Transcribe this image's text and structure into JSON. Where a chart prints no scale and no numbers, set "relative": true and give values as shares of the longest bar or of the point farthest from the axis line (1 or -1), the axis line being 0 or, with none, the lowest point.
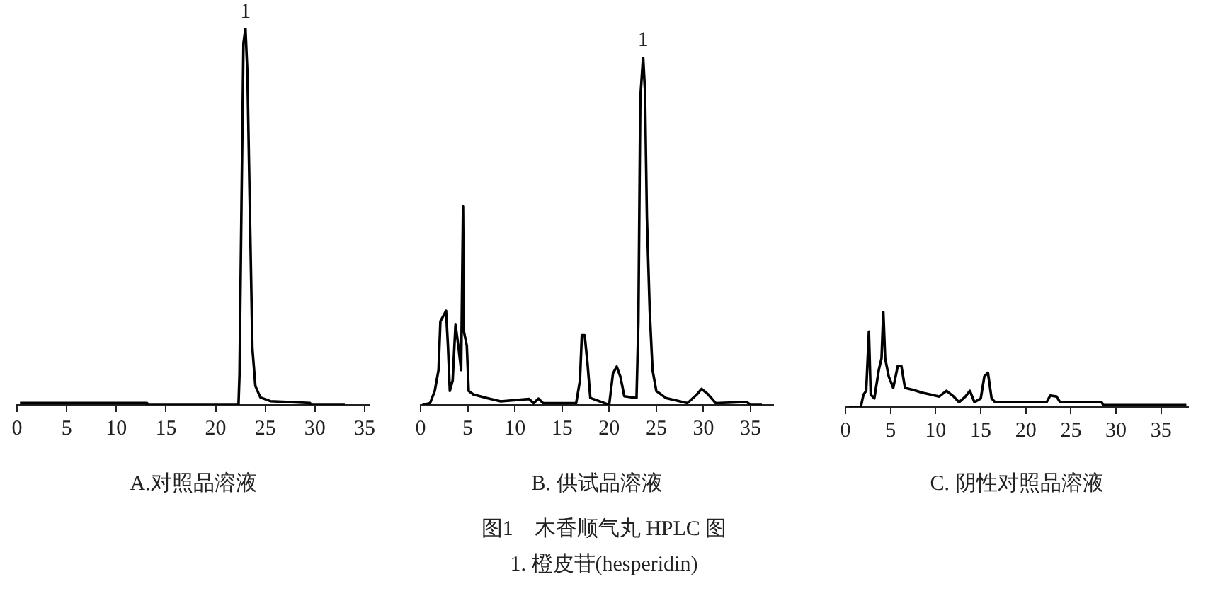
{
  "chart_data": [
    {
      "type": "line",
      "xlabel": "A.对照品溶液",
      "relative": true,
      "xlim": [
        0,
        35.5
      ],
      "xticks": [
        0,
        5,
        10,
        15,
        20,
        25,
        30,
        35
      ],
      "tick_labels": "x",
      "grid": false,
      "legend": false,
      "marker": "none",
      "annotations": [
        {
          "text": "1",
          "x": 23.0,
          "y": 1
        }
      ],
      "series": [
        {
          "color": "#000000",
          "x": [
            0.3,
            13,
            13.1,
            22.3,
            22.4,
            22.6,
            22.8,
            23.0,
            23.2,
            23.4,
            23.7,
            24.0,
            24.5,
            25.5,
            29.5,
            29.6,
            33
          ],
          "values": [
            0.005,
            0.005,
            0,
            0,
            0.08,
            0.53,
            0.96,
            1,
            0.88,
            0.58,
            0.15,
            0.05,
            0.02,
            0.01,
            0.005,
            0,
            0
          ]
        }
      ]
    },
    {
      "type": "line",
      "xlabel": "B. 供试品溶液",
      "relative": true,
      "xlim": [
        0,
        37.4
      ],
      "xticks": [
        0,
        5,
        10,
        15,
        20,
        25,
        30,
        35
      ],
      "tick_labels": "x",
      "grid": false,
      "legend": false,
      "marker": "none",
      "annotations": [
        {
          "text": "1",
          "x": 23.6,
          "y": 1
        },
        "图1　木香顺气丸 HPLC 图",
        "1. 橙皮苷(hesperidin)"
      ],
      "series": [
        {
          "color": "#000000",
          "x": [
            0.2,
            1.0,
            1.5,
            1.9,
            2.1,
            2.5,
            2.7,
            2.9,
            3.1,
            3.4,
            3.7,
            4.0,
            4.3,
            4.5,
            4.6,
            4.9,
            5.1,
            5.6,
            7,
            8.5,
            11.5,
            12,
            12.5,
            13,
            16.5,
            16.9,
            17.1,
            17.4,
            17.7,
            18,
            19.5,
            20,
            20.4,
            20.8,
            21.2,
            21.6,
            22.9,
            23.1,
            23.3,
            23.6,
            23.8,
            24.0,
            24.3,
            24.6,
            25,
            26,
            28.3,
            29.3,
            29.8,
            30.5,
            31.3,
            34.3,
            34.6,
            35,
            36.2
          ],
          "values": [
            0,
            0.005,
            0.04,
            0.1,
            0.24,
            0.26,
            0.27,
            0.17,
            0.04,
            0.07,
            0.23,
            0.17,
            0.1,
            0.57,
            0.21,
            0.17,
            0.04,
            0.03,
            0.02,
            0.01,
            0.017,
            0.005,
            0.018,
            0.005,
            0.005,
            0.07,
            0.2,
            0.2,
            0.12,
            0.02,
            0.005,
            0,
            0.09,
            0.11,
            0.08,
            0.025,
            0.02,
            0.24,
            0.88,
            1,
            0.9,
            0.54,
            0.27,
            0.1,
            0.04,
            0.02,
            0.005,
            0.03,
            0.046,
            0.03,
            0.005,
            0.008,
            0.008,
            0,
            0
          ]
        }
      ]
    },
    {
      "type": "line",
      "xlabel": "C. 阴性对照品溶液",
      "relative": true,
      "xlim": [
        0,
        38
      ],
      "xticks": [
        0,
        5,
        10,
        15,
        20,
        25,
        30,
        35
      ],
      "tick_labels": "x",
      "grid": false,
      "legend": false,
      "marker": "none",
      "series": [
        {
          "color": "#000000",
          "x": [
            0.4,
            1.7,
            2.0,
            2.3,
            2.6,
            2.8,
            3.2,
            3.7,
            4.0,
            4.2,
            4.4,
            4.8,
            5.3,
            5.8,
            6.2,
            6.6,
            7.5,
            8.5,
            9.5,
            10.4,
            11.2,
            12,
            12.6,
            13.3,
            13.8,
            14.3,
            15.0,
            15.4,
            15.8,
            16.2,
            16.6,
            22.3,
            22.7,
            23.4,
            23.8,
            28.4,
            28.6,
            37.8
          ],
          "values": [
            0,
            0,
            0.13,
            0.17,
            0.79,
            0.13,
            0.09,
            0.39,
            0.51,
            1,
            0.51,
            0.32,
            0.2,
            0.43,
            0.43,
            0.2,
            0.18,
            0.15,
            0.13,
            0.11,
            0.17,
            0.11,
            0.05,
            0.11,
            0.17,
            0.05,
            0.09,
            0.32,
            0.36,
            0.09,
            0.05,
            0.05,
            0.12,
            0.11,
            0.05,
            0.05,
            0.02,
            0.02
          ]
        }
      ]
    }
  ]
}
